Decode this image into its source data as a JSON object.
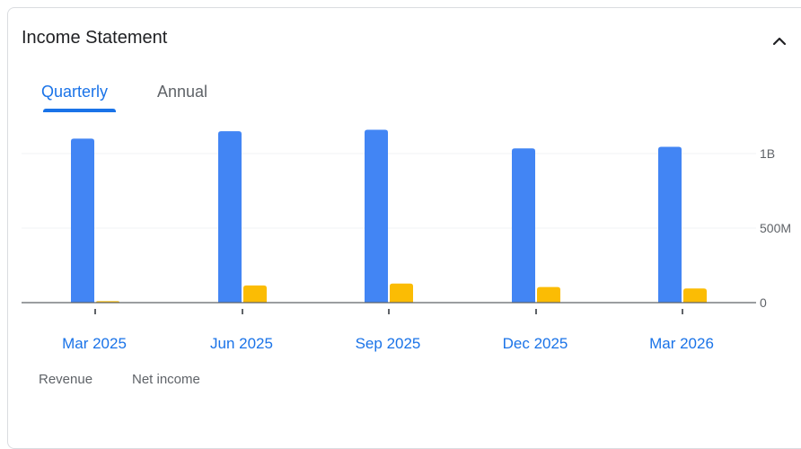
{
  "card": {
    "title": "Income Statement",
    "collapse_icon": "chevron-up-icon"
  },
  "tabs": [
    {
      "label": "Quarterly",
      "active": true
    },
    {
      "label": "Annual",
      "active": false
    }
  ],
  "legend": [
    {
      "label": "Revenue",
      "color": "#4285f4"
    },
    {
      "label": "Net income",
      "color": "#fbbc04"
    }
  ],
  "colors": {
    "revenue": "#4285f4",
    "net_income": "#fbbc04",
    "accent": "#1a73e8"
  },
  "chart_data": {
    "type": "bar",
    "categories": [
      "Mar 2025",
      "Jun 2025",
      "Sep 2025",
      "Dec 2025",
      "Mar 2026"
    ],
    "series": [
      {
        "name": "Revenue",
        "values": [
          1100000000,
          1150000000,
          1160000000,
          1035000000,
          1045000000
        ]
      },
      {
        "name": "Net income",
        "values": [
          10000000,
          115000000,
          128000000,
          105000000,
          95000000
        ]
      }
    ],
    "yticks": [
      {
        "value": 0,
        "label": "0"
      },
      {
        "value": 500000000,
        "label": "500M"
      },
      {
        "value": 1000000000,
        "label": "1B"
      }
    ],
    "ylim": [
      0,
      1200000000
    ],
    "grid": true
  }
}
